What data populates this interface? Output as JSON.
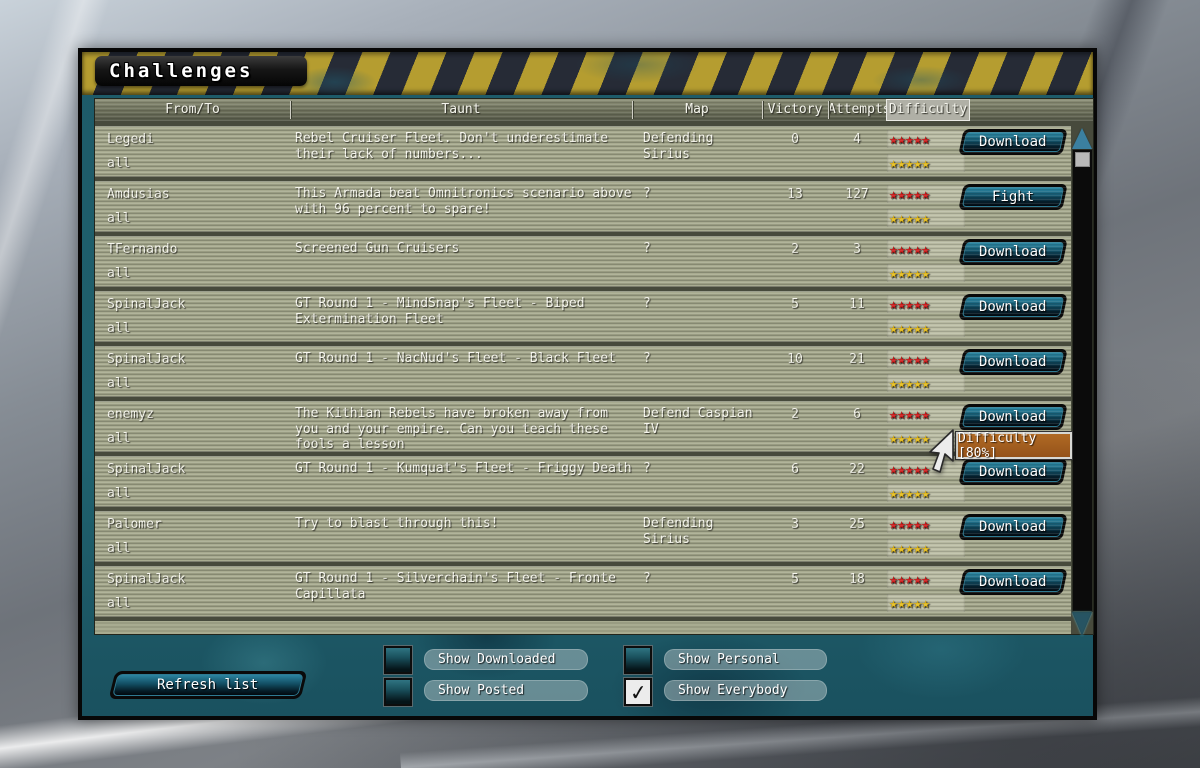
{
  "title": "Challenges",
  "table": {
    "columns": [
      "From/To",
      "Taunt",
      "Map",
      "Victory",
      "Attempts",
      "Difficulty"
    ],
    "highlighted_column": "Difficulty",
    "rows": [
      {
        "from": "Legedi",
        "to": "all",
        "taunt": "Rebel Cruiser Fleet. Don't underestimate their lack of numbers...",
        "map": "Defending Sirius",
        "victory": "0",
        "attempts": "4",
        "difficulty_stars": 3.5,
        "rating_stars": 5,
        "action": "Download"
      },
      {
        "from": "Amdusias",
        "to": "all",
        "taunt": "This Armada beat Omnitronics scenario above with 96 percent to spare!",
        "map": "?",
        "victory": "13",
        "attempts": "127",
        "difficulty_stars": 3.5,
        "rating_stars": 5,
        "action": "Fight"
      },
      {
        "from": "TFernando",
        "to": "all",
        "taunt": "Screened Gun Cruisers",
        "map": "?",
        "victory": "2",
        "attempts": "3",
        "difficulty_stars": 4,
        "rating_stars": 4,
        "action": "Download"
      },
      {
        "from": "SpinalJack",
        "to": "all",
        "taunt": "GT Round 1 - MindSnap's Fleet - Biped Extermination Fleet",
        "map": "?",
        "victory": "5",
        "attempts": "11",
        "difficulty_stars": 5,
        "rating_stars": 4,
        "action": "Download"
      },
      {
        "from": "SpinalJack",
        "to": "all",
        "taunt": "GT Round 1 - NacNud's Fleet - Black Fleet",
        "map": "?",
        "victory": "10",
        "attempts": "21",
        "difficulty_stars": 4,
        "rating_stars": 4,
        "action": "Download"
      },
      {
        "from": "enemyz",
        "to": "all",
        "taunt": "The Kithian Rebels have broken away from you and your empire. Can you teach these fools a lesson",
        "map": "Defend Caspian IV",
        "victory": "2",
        "attempts": "6",
        "difficulty_stars": 4,
        "rating_stars": 4,
        "action": "Download"
      },
      {
        "from": "SpinalJack",
        "to": "all",
        "taunt": "GT Round 1 - Kumquat's Fleet - Friggy Death",
        "map": "?",
        "victory": "6",
        "attempts": "22",
        "difficulty_stars": 4,
        "rating_stars": 4,
        "action": "Download"
      },
      {
        "from": "Palomer",
        "to": "all",
        "taunt": "Try to blast through this!",
        "map": "Defending Sirius",
        "victory": "3",
        "attempts": "25",
        "difficulty_stars": 3,
        "rating_stars": 3.5,
        "action": "Download"
      },
      {
        "from": "SpinalJack",
        "to": "all",
        "taunt": "GT Round 1 - Silverchain's Fleet - Fronte Capillata",
        "map": "?",
        "victory": "5",
        "attempts": "18",
        "difficulty_stars": 4,
        "rating_stars": 3.5,
        "action": "Download"
      }
    ]
  },
  "tooltip": {
    "text": "Difficulty [80%]"
  },
  "footer": {
    "refresh_label": "Refresh list",
    "checkboxes": [
      {
        "label": "Show Downloaded",
        "checked": false
      },
      {
        "label": "Show Posted",
        "checked": false
      },
      {
        "label": "Show Personal",
        "checked": false
      },
      {
        "label": "Show Everybody",
        "checked": true
      }
    ]
  },
  "icons": {
    "star": "★",
    "check": "✓"
  },
  "colors": {
    "star_filled_red": "#cf1d1d",
    "star_filled_yellow": "#e6bd1f",
    "star_empty": "#4e4e48",
    "tooltip_bg": "#a8611f",
    "hazard_yellow": "#b59d30",
    "hazard_dark": "#262b36",
    "button_face": "#15607a"
  }
}
